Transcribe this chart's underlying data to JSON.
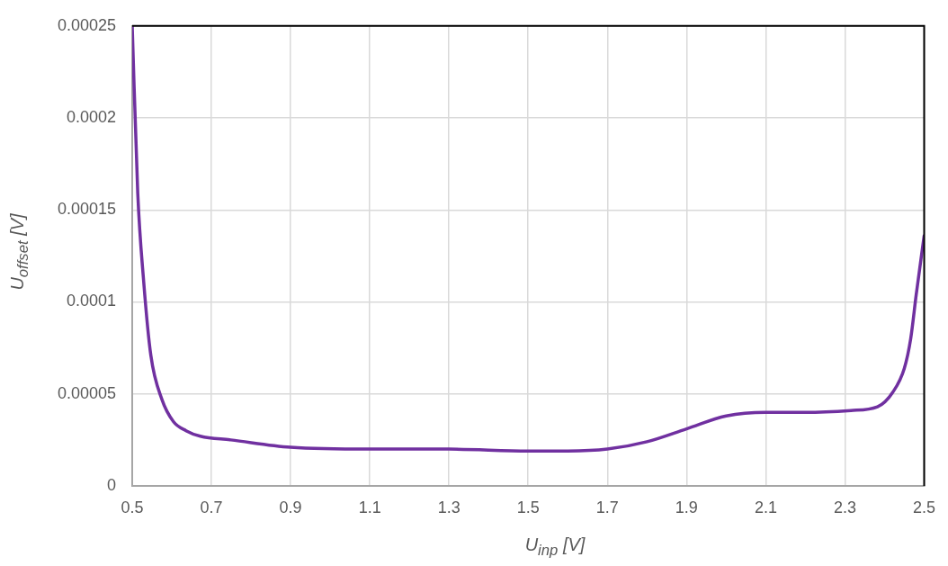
{
  "chart_data": {
    "type": "line",
    "xlabel": "U$_{inp}$ [V]",
    "ylabel": "U$_{offset}$ [V]",
    "xlim": [
      0.5,
      2.5
    ],
    "xticks": [
      0.5,
      0.7,
      0.9,
      1.1,
      1.3,
      1.5,
      1.7,
      1.9,
      2.1,
      2.3,
      2.5
    ],
    "ylim": [
      0,
      0.00025
    ],
    "yticks": [
      0,
      {
        "value": 5e-05,
        "label": "0.00005"
      },
      {
        "value": 0.0001,
        "label": "0.0001"
      },
      {
        "value": 0.00015,
        "label": "0.00015"
      },
      {
        "value": 0.0002,
        "label": "0.0002"
      },
      {
        "value": 0.00025,
        "label": "0.00025"
      }
    ],
    "grid": true,
    "marker": "none",
    "line_style": "solid",
    "series": [
      {
        "color": "#7030a0",
        "x": [
          0.5,
          0.514,
          0.529,
          0.547,
          0.575,
          0.604,
          0.636,
          0.672,
          0.749,
          0.9,
          1.1,
          1.3,
          1.5,
          1.6,
          1.7,
          1.8,
          1.9,
          2.0,
          2.1,
          2.2,
          2.315,
          2.382,
          2.421,
          2.45,
          2.466,
          2.48,
          2.5
        ],
        "values": [
          0.00025,
          0.000159,
          0.000111,
          7.1e-05,
          4.7e-05,
          3.5e-05,
          3e-05,
          2.7e-05,
          2.5e-05,
          2.1e-05,
          2e-05,
          2e-05,
          1.9e-05,
          1.9e-05,
          2e-05,
          2.4e-05,
          3.1e-05,
          3.8e-05,
          4e-05,
          4e-05,
          4.1e-05,
          4.3e-05,
          5.1e-05,
          6.4e-05,
          8e-05,
          0.000104,
          0.000136
        ]
      }
    ]
  }
}
